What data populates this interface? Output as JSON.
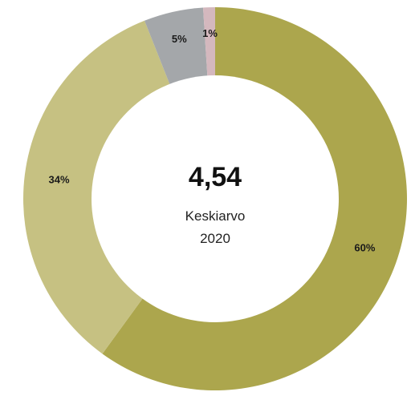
{
  "chart_data": {
    "type": "pie",
    "variant": "donut",
    "categories": [
      "",
      "",
      "",
      ""
    ],
    "values": [
      60,
      34,
      5,
      1
    ],
    "labels": [
      "60%",
      "34%",
      "5%",
      "1%"
    ],
    "colors": [
      "#aca64d",
      "#c6c182",
      "#a4a7aa",
      "#d4b8be"
    ],
    "start": "12 o'clock",
    "direction": "clockwise",
    "center": {
      "value": "4,54",
      "line1": "Keskiarvo",
      "line2": "2020"
    },
    "legend": "none"
  }
}
